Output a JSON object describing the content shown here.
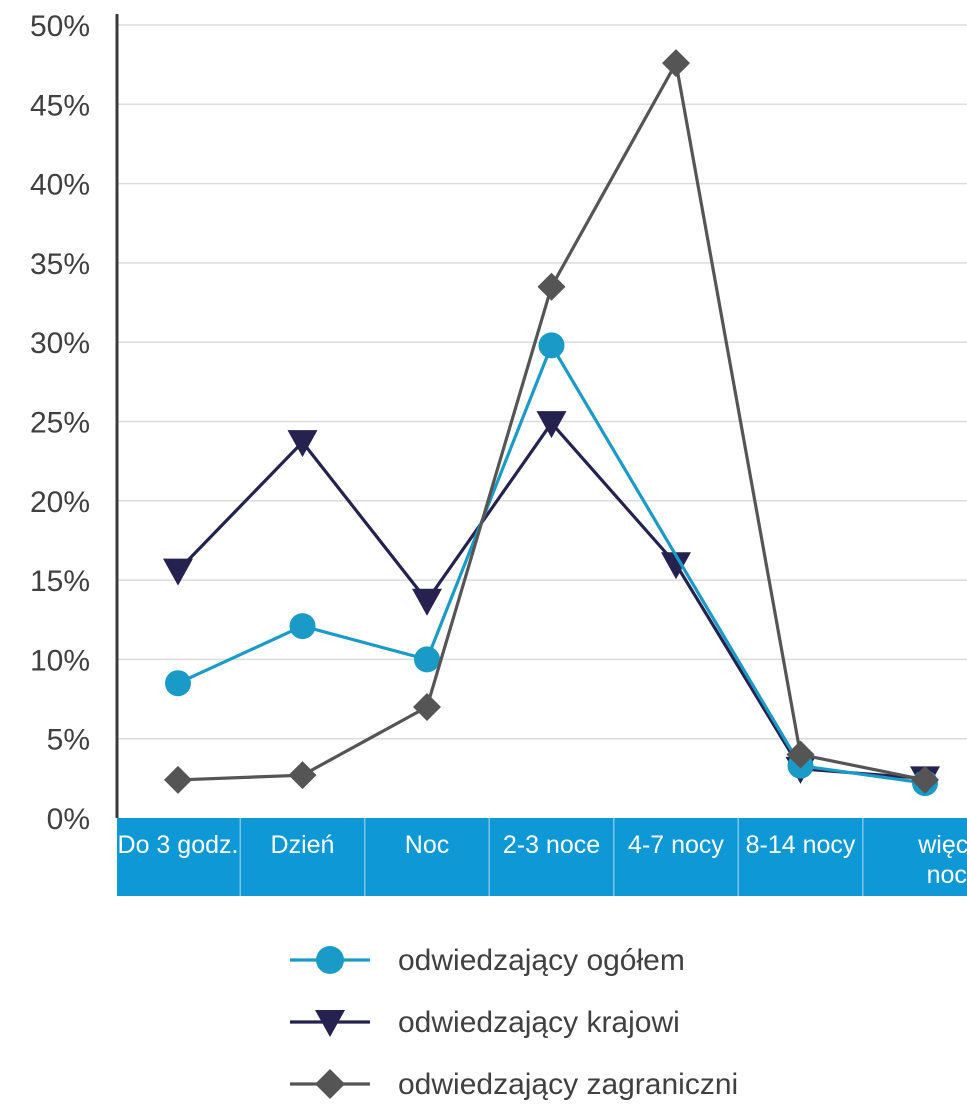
{
  "chart_data": {
    "type": "line",
    "categories": [
      [
        "Do 3 godz."
      ],
      [
        "Dzień"
      ],
      [
        "Noc"
      ],
      [
        "2-3 noce"
      ],
      [
        "4-7 nocy"
      ],
      [
        "8-14 nocy"
      ],
      [
        "więcej",
        "nocy"
      ]
    ],
    "yticks": [
      "0%",
      "5%",
      "10%",
      "15%",
      "20%",
      "25%",
      "30%",
      "35%",
      "40%",
      "45%",
      "50%"
    ],
    "ylim": [
      0,
      50
    ],
    "grid": true,
    "legend_position": "bottom",
    "series": [
      {
        "name": "odwiedzający ogółem",
        "color": "#1a9bc7",
        "marker": "circle",
        "values": [
          8.5,
          12.1,
          10.0,
          29.8,
          null,
          3.3,
          2.2
        ]
      },
      {
        "name": "odwiedzający krajowi",
        "color": "#25224f",
        "marker": "triangle-down",
        "values": [
          15.6,
          23.7,
          13.7,
          24.9,
          16.0,
          3.1,
          2.5
        ]
      },
      {
        "name": "odwiedzający zagraniczni",
        "color": "#555555",
        "marker": "diamond",
        "values": [
          2.4,
          2.7,
          7.0,
          33.5,
          47.6,
          4.0,
          2.4
        ]
      }
    ],
    "colors": {
      "axis_band": "#0e98d6",
      "grid": "#dcdcdc",
      "axis_line": "#3a3a3a"
    }
  }
}
